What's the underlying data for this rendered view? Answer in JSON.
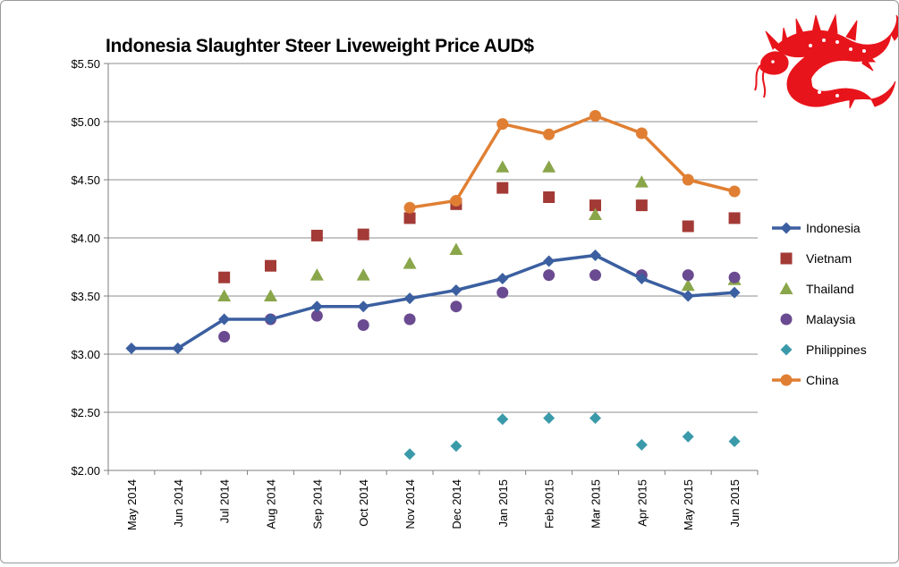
{
  "chart_data": {
    "type": "line",
    "title": "Indonesia Slaughter Steer Liveweight Price AUD$",
    "xlabel": "",
    "ylabel": "",
    "categories": [
      "May 2014",
      "Jun 2014",
      "Jul 2014",
      "Aug 2014",
      "Sep 2014",
      "Oct 2014",
      "Nov 2014",
      "Dec 2014",
      "Jan 2015",
      "Feb 2015",
      "Mar 2015",
      "Apr 2015",
      "May 2015",
      "Jun 2015"
    ],
    "ylim": [
      2.0,
      5.5
    ],
    "yticks": [
      {
        "value": 2.0,
        "label": "$2.00"
      },
      {
        "value": 2.5,
        "label": "$2.50"
      },
      {
        "value": 3.0,
        "label": "$3.00"
      },
      {
        "value": 3.5,
        "label": "$3.50"
      },
      {
        "value": 4.0,
        "label": "$4.00"
      },
      {
        "value": 4.5,
        "label": "$4.50"
      },
      {
        "value": 5.0,
        "label": "$5.00"
      },
      {
        "value": 5.5,
        "label": "$5.50"
      }
    ],
    "grid": true,
    "legend_position": "right",
    "series": [
      {
        "name": "Indonesia",
        "color": "#3b5fa0",
        "marker": "diamond",
        "line": true,
        "values": [
          3.05,
          3.05,
          3.3,
          3.3,
          3.41,
          3.41,
          3.48,
          3.55,
          3.65,
          3.8,
          3.85,
          3.65,
          3.5,
          3.53
        ]
      },
      {
        "name": "Vietnam",
        "color": "#a33a36",
        "marker": "square",
        "line": false,
        "values": [
          null,
          null,
          3.66,
          3.76,
          4.02,
          4.03,
          4.17,
          4.29,
          4.43,
          4.35,
          4.28,
          4.28,
          4.1,
          4.17
        ]
      },
      {
        "name": "Thailand",
        "color": "#8aa64a",
        "marker": "triangle",
        "line": false,
        "values": [
          null,
          null,
          3.5,
          3.5,
          3.68,
          3.68,
          3.78,
          3.9,
          4.61,
          4.61,
          4.2,
          4.48,
          3.59,
          3.64
        ]
      },
      {
        "name": "Malaysia",
        "color": "#6a4a90",
        "marker": "circle",
        "line": false,
        "values": [
          null,
          null,
          3.15,
          3.3,
          3.33,
          3.25,
          3.3,
          3.41,
          3.53,
          3.68,
          3.68,
          3.68,
          3.68,
          3.66
        ]
      },
      {
        "name": "Philippines",
        "color": "#3a9aaa",
        "marker": "diamond",
        "line": false,
        "values": [
          null,
          null,
          null,
          null,
          null,
          null,
          2.14,
          2.21,
          2.44,
          2.45,
          2.45,
          2.22,
          2.29,
          2.25
        ]
      },
      {
        "name": "China",
        "color": "#e07f33",
        "marker": "circle",
        "line": true,
        "values": [
          null,
          null,
          null,
          null,
          null,
          null,
          4.26,
          4.32,
          4.98,
          4.89,
          5.05,
          4.9,
          4.5,
          4.4
        ]
      }
    ]
  },
  "decor": {
    "logo_icon": "red-dragon-icon",
    "logo_color": "#e8141b"
  }
}
